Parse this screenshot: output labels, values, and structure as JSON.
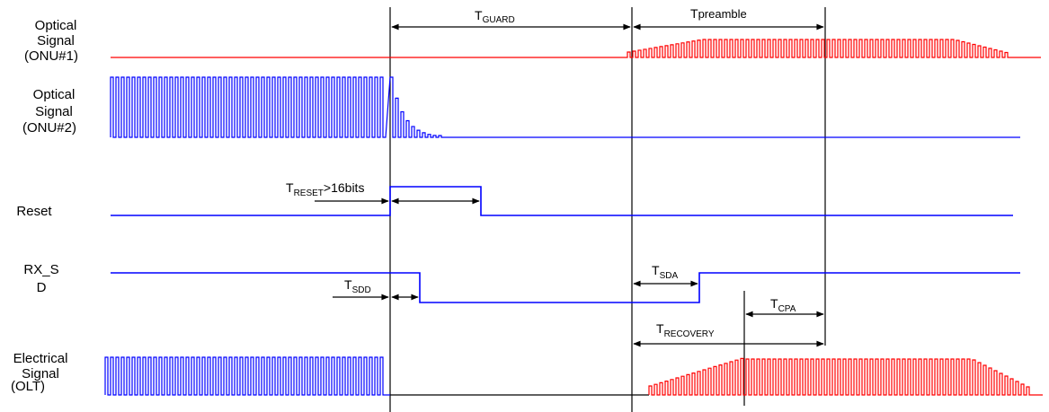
{
  "row_labels": {
    "onu1": [
      "Optical",
      "Signal",
      "(ONU#1)"
    ],
    "onu2": [
      "Optical",
      "Signal",
      "(ONU#2)"
    ],
    "reset": "Reset",
    "rx_sd": [
      "RX_S",
      "D"
    ],
    "electrical": [
      "Electrical",
      "Signal",
      "(OLT)"
    ]
  },
  "timing_labels": {
    "guard": {
      "main": "T",
      "sub": "GUARD"
    },
    "preamble": {
      "main": "T",
      "sub": "preamble"
    },
    "reset": {
      "main": "T",
      "sub": "RESET",
      "suffix": ">16bits"
    },
    "sdd": {
      "main": "T",
      "sub": "SDD"
    },
    "sda": {
      "main": "T",
      "sub": "SDA"
    },
    "cpa": {
      "main": "T",
      "sub": "CPA"
    },
    "recovery": {
      "main": "T",
      "sub": "RECOVERY"
    }
  },
  "colors": {
    "onu1_signal": "#ff0000",
    "onu2_signal": "#0000ff",
    "control_lines": "#0000ff",
    "electrical_onu2": "#0000ff",
    "electrical_onu1": "#ff0000",
    "guard_line": "#000000",
    "markers": "#000000"
  }
}
